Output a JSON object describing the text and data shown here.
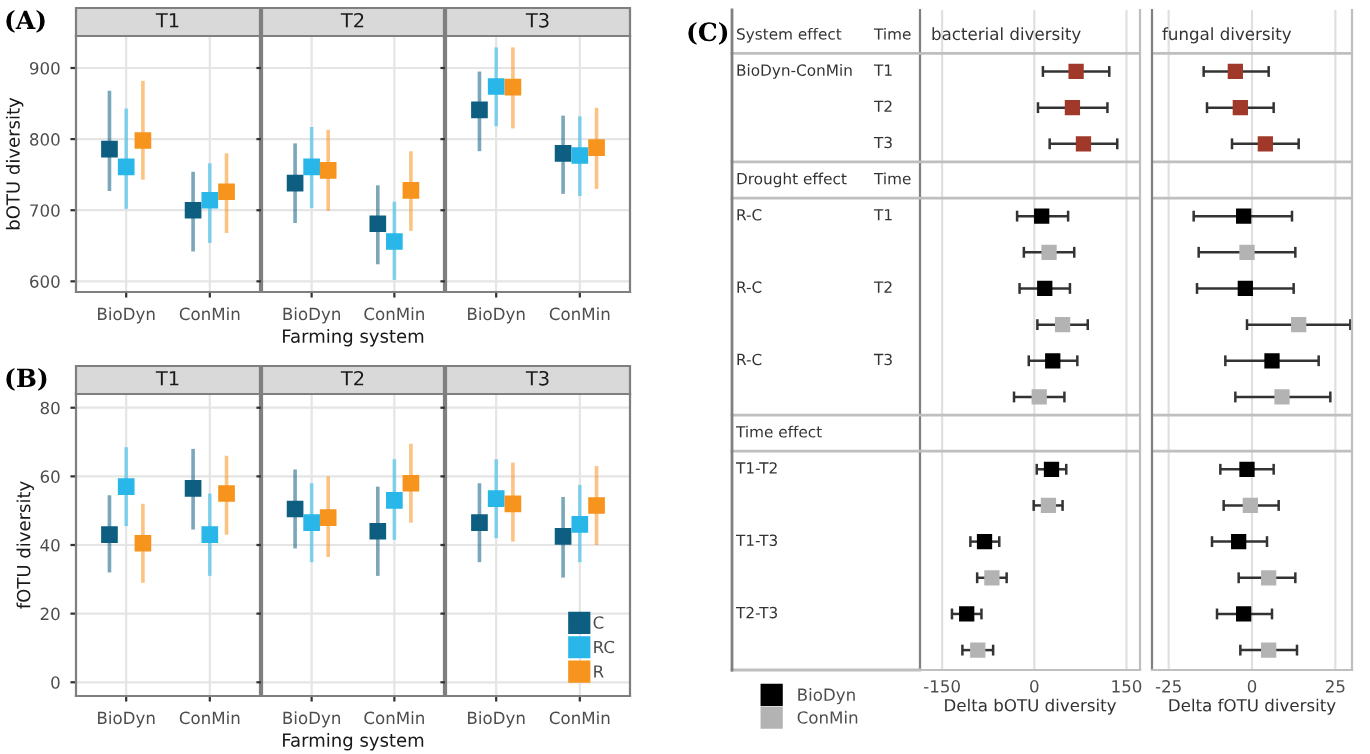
{
  "chart_data": [
    {
      "type": "scatter",
      "title": "T1",
      "ylabel": "bOTU diversity",
      "annotations": [
        "(A)"
      ],
      "categories": [
        "BioDyn",
        "ConMin"
      ],
      "ylim": [
        585,
        945
      ],
      "yticks": [
        600,
        700,
        800,
        900
      ],
      "grid": true,
      "marker": "square",
      "series": [
        {
          "color": "#0d5e80",
          "values": [
            786,
            700
          ],
          "errors": [
            [
              727,
              868
            ],
            [
              642,
              754
            ]
          ]
        },
        {
          "color": "#29b6e8",
          "values": [
            761,
            714
          ],
          "errors": [
            [
              702,
              843
            ],
            [
              654,
              766
            ]
          ]
        },
        {
          "color": "#f7941d",
          "values": [
            798,
            726
          ],
          "errors": [
            [
              743,
              882
            ],
            [
              668,
              780
            ]
          ]
        }
      ]
    },
    {
      "type": "scatter",
      "title": "T2",
      "xlabel": "Farming system",
      "categories": [
        "BioDyn",
        "ConMin"
      ],
      "ylim": [
        585,
        945
      ],
      "yticks": [
        600,
        700,
        800,
        900
      ],
      "grid": true,
      "marker": "square",
      "tick_labels": "x",
      "series": [
        {
          "color": "#0d5e80",
          "values": [
            738,
            681
          ],
          "errors": [
            [
              682,
              794
            ],
            [
              624,
              735
            ]
          ]
        },
        {
          "color": "#29b6e8",
          "values": [
            761,
            656
          ],
          "errors": [
            [
              703,
              817
            ],
            [
              602,
              712
            ]
          ]
        },
        {
          "color": "#f7941d",
          "values": [
            756,
            728
          ],
          "errors": [
            [
              699,
              813
            ],
            [
              671,
              783
            ]
          ]
        }
      ]
    },
    {
      "type": "scatter",
      "title": "T3",
      "categories": [
        "BioDyn",
        "ConMin"
      ],
      "ylim": [
        585,
        945
      ],
      "yticks": [
        600,
        700,
        800,
        900
      ],
      "grid": true,
      "marker": "square",
      "tick_labels": "x",
      "series": [
        {
          "color": "#0d5e80",
          "values": [
            841,
            780
          ],
          "errors": [
            [
              783,
              895
            ],
            [
              723,
              833
            ]
          ]
        },
        {
          "color": "#29b6e8",
          "values": [
            874,
            777
          ],
          "errors": [
            [
              818,
              929
            ],
            [
              720,
              832
            ]
          ]
        },
        {
          "color": "#f7941d",
          "values": [
            873,
            788
          ],
          "errors": [
            [
              815,
              929
            ],
            [
              730,
              844
            ]
          ]
        }
      ]
    },
    {
      "type": "scatter",
      "title": "T1",
      "ylabel": "fOTU diversity",
      "annotations": [
        "(B)"
      ],
      "categories": [
        "BioDyn",
        "ConMin"
      ],
      "ylim": [
        -4,
        84
      ],
      "yticks": [
        0,
        20,
        40,
        60,
        80
      ],
      "grid": true,
      "marker": "square",
      "series": [
        {
          "color": "#0d5e80",
          "values": [
            43,
            56.5
          ],
          "errors": [
            [
              32,
              54.5
            ],
            [
              44.5,
              68
            ]
          ]
        },
        {
          "color": "#29b6e8",
          "values": [
            57,
            43
          ],
          "errors": [
            [
              45.5,
              68.5
            ],
            [
              31,
              55
            ]
          ]
        },
        {
          "color": "#f7941d",
          "values": [
            40.5,
            55
          ],
          "errors": [
            [
              29,
              52
            ],
            [
              43,
              66
            ]
          ]
        }
      ]
    },
    {
      "type": "scatter",
      "title": "T2",
      "xlabel": "Farming system",
      "categories": [
        "BioDyn",
        "ConMin"
      ],
      "ylim": [
        -4,
        84
      ],
      "yticks": [
        0,
        20,
        40,
        60,
        80
      ],
      "grid": true,
      "marker": "square",
      "tick_labels": "x",
      "series": [
        {
          "color": "#0d5e80",
          "values": [
            50.5,
            44
          ],
          "errors": [
            [
              39,
              62
            ],
            [
              31,
              57
            ]
          ]
        },
        {
          "color": "#29b6e8",
          "values": [
            46.5,
            53
          ],
          "errors": [
            [
              35,
              58
            ],
            [
              41.5,
              65
            ]
          ]
        },
        {
          "color": "#f7941d",
          "values": [
            48,
            58
          ],
          "errors": [
            [
              36.5,
              60
            ],
            [
              46.5,
              69.5
            ]
          ]
        }
      ]
    },
    {
      "type": "scatter",
      "title": "T3",
      "categories": [
        "BioDyn",
        "ConMin"
      ],
      "ylim": [
        -4,
        84
      ],
      "yticks": [
        0,
        20,
        40,
        60,
        80
      ],
      "grid": true,
      "marker": "square",
      "tick_labels": "x",
      "legend": "bottom right",
      "series": [
        {
          "name": "C",
          "color": "#0d5e80",
          "values": [
            46.5,
            42.5
          ],
          "errors": [
            [
              35,
              58
            ],
            [
              30.5,
              54
            ]
          ]
        },
        {
          "name": "RC",
          "color": "#29b6e8",
          "values": [
            53.5,
            46
          ],
          "errors": [
            [
              42,
              65
            ],
            [
              35,
              57.5
            ]
          ]
        },
        {
          "name": "R",
          "color": "#f7941d",
          "values": [
            52,
            51.5
          ],
          "errors": [
            [
              41,
              64
            ],
            [
              40,
              63
            ]
          ]
        }
      ]
    },
    {
      "type": "scatter",
      "orientation": "horizontal",
      "title": "bacterial diversity",
      "xlabel": "Delta bOTU diversity",
      "annotations": [
        "(C)"
      ],
      "categories": [
        "System effect",
        "BioDyn-ConMin",
        null,
        null,
        "Drought effect",
        "R-C",
        null,
        "R-C",
        null,
        "R-C",
        null,
        "Time effect",
        "T1-T2",
        null,
        "T1-T3",
        null,
        "T2-T3",
        null
      ],
      "y2_categories": [
        "Time",
        "T1",
        "T2",
        "T3",
        "Time",
        "T1",
        null,
        "T2",
        null,
        "T3",
        null,
        null,
        null,
        null,
        null,
        null,
        null,
        null
      ],
      "xlim": [
        -186,
        172
      ],
      "xticks": [
        -150,
        0,
        150
      ],
      "grid": "x",
      "marker": "square",
      "legend": "bottom left",
      "series": [
        {
          "color": "#a0392a",
          "values": [
            null,
            68,
            62,
            80,
            null,
            null,
            null,
            null,
            null,
            null,
            null,
            null,
            null,
            null,
            null,
            null,
            null,
            null
          ],
          "errors": [
            null,
            [
              14,
              122
            ],
            [
              6,
              119
            ],
            [
              25,
              135
            ],
            null,
            null,
            null,
            null,
            null,
            null,
            null,
            null,
            null,
            null,
            null,
            null,
            null,
            null
          ]
        },
        {
          "name": "BioDyn",
          "color": "#000000",
          "values": [
            null,
            null,
            null,
            null,
            null,
            12,
            null,
            17,
            null,
            30,
            null,
            null,
            28,
            null,
            -81,
            null,
            -110,
            null
          ],
          "errors": [
            null,
            null,
            null,
            null,
            null,
            [
              -28,
              55
            ],
            null,
            [
              -24,
              58
            ],
            null,
            [
              -9,
              70
            ],
            null,
            null,
            [
              4,
              52
            ],
            null,
            [
              -104,
              -57
            ],
            null,
            [
              -134,
              -86
            ],
            null
          ]
        },
        {
          "name": "ConMin",
          "color": "#b3b3b3",
          "values": [
            null,
            null,
            null,
            null,
            null,
            null,
            24,
            null,
            46,
            null,
            8,
            null,
            null,
            23,
            null,
            -69,
            null,
            -92
          ],
          "errors": [
            null,
            null,
            null,
            null,
            null,
            null,
            [
              -17,
              65
            ],
            null,
            [
              5,
              87
            ],
            null,
            [
              -33,
              49
            ],
            null,
            null,
            [
              -1,
              46
            ],
            null,
            [
              -93,
              -45
            ],
            null,
            [
              -117,
              -67
            ]
          ]
        }
      ]
    },
    {
      "type": "scatter",
      "orientation": "horizontal",
      "title": "fungal diversity",
      "xlabel": "Delta fOTU diversity",
      "categories": [
        null,
        null,
        null,
        null,
        null,
        null,
        null,
        null,
        null,
        null,
        null,
        null,
        null,
        null,
        null,
        null,
        null,
        null
      ],
      "xlim": [
        -30,
        30
      ],
      "xticks": [
        -25,
        0,
        25
      ],
      "grid": "x",
      "marker": "square",
      "series": [
        {
          "color": "#a0392a",
          "values": [
            null,
            -5,
            -3.5,
            4,
            null,
            null,
            null,
            null,
            null,
            null,
            null,
            null,
            null,
            null,
            null,
            null,
            null,
            null
          ],
          "errors": [
            null,
            [
              -14.5,
              5
            ],
            [
              -13.5,
              6.5
            ],
            [
              -6,
              14
            ],
            null,
            null,
            null,
            null,
            null,
            null,
            null,
            null,
            null,
            null,
            null,
            null,
            null,
            null
          ]
        },
        {
          "color": "#000000",
          "values": [
            null,
            null,
            null,
            null,
            null,
            -2.5,
            null,
            -2,
            null,
            6,
            null,
            null,
            -1.5,
            null,
            -4,
            null,
            -2.5,
            null
          ],
          "errors": [
            null,
            null,
            null,
            null,
            null,
            [
              -17.5,
              12
            ],
            null,
            [
              -16.5,
              12.5
            ],
            null,
            [
              -8,
              20
            ],
            null,
            null,
            [
              -9.5,
              6.5
            ],
            null,
            [
              -12,
              4.5
            ],
            null,
            [
              -10.5,
              6
            ],
            null
          ]
        },
        {
          "color": "#b3b3b3",
          "values": [
            null,
            null,
            null,
            null,
            null,
            null,
            -1.5,
            null,
            14,
            null,
            9,
            null,
            null,
            -0.5,
            null,
            5,
            null,
            5
          ],
          "errors": [
            null,
            null,
            null,
            null,
            null,
            null,
            [
              -16,
              13
            ],
            null,
            [
              -1.5,
              29.5
            ],
            null,
            [
              -5,
              23.5
            ],
            null,
            null,
            [
              -8.5,
              8
            ],
            null,
            [
              -4,
              13
            ],
            null,
            [
              -3.5,
              13.5
            ]
          ]
        }
      ]
    }
  ]
}
